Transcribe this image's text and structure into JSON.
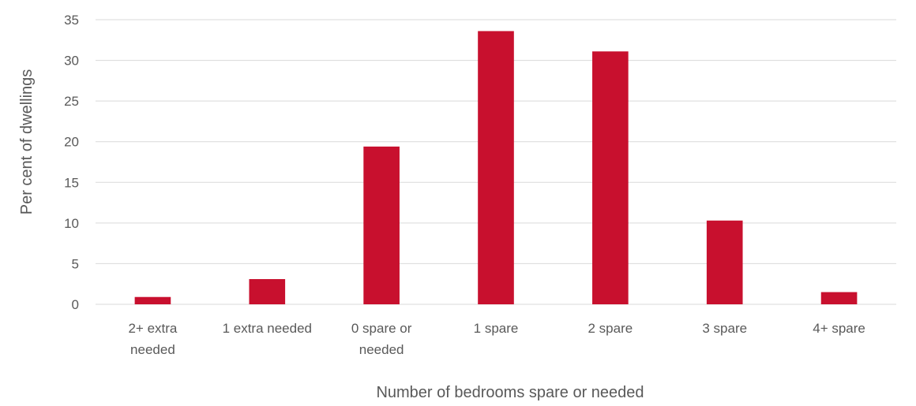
{
  "chart_data": {
    "type": "bar",
    "title": "",
    "xlabel": "Number of bedrooms spare or needed",
    "ylabel": "Per cent of dwellings",
    "categories": [
      [
        "2+ extra",
        "needed"
      ],
      [
        "1 extra needed"
      ],
      [
        "0 spare or",
        "needed"
      ],
      [
        "1 spare"
      ],
      [
        "2 spare"
      ],
      [
        "3 spare"
      ],
      [
        "4+ spare"
      ]
    ],
    "values": [
      0.9,
      3.1,
      19.4,
      33.6,
      31.1,
      10.3,
      1.5
    ],
    "ylim": [
      0,
      35
    ],
    "yticks": [
      0,
      5,
      10,
      15,
      20,
      25,
      30,
      35
    ],
    "grid": true,
    "legend": "none",
    "bar_color": "#c8102e",
    "grid_color": "#d9d9d9",
    "text_color": "#595959"
  }
}
